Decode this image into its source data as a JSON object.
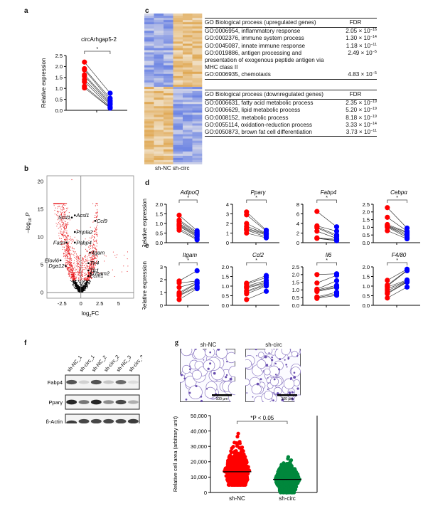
{
  "panels": {
    "a": {
      "letter": "a",
      "chart_data": {
        "type": "scatter",
        "subtype": "paired-dot",
        "title": "circArhgap5-2",
        "ylabel": "Relative expression",
        "ylim": [
          0,
          2.5
        ],
        "yticks": [
          "0.0",
          "0.5",
          "1.0",
          "1.5",
          "2.0",
          "2.5"
        ],
        "significance": "*",
        "series": [
          {
            "name": "sh-NC",
            "color": "#ff0000",
            "values": [
              2.2,
              1.9,
              1.85,
              1.62,
              1.55,
              1.4,
              1.3,
              1.1,
              1.02
            ]
          },
          {
            "name": "sh-circ",
            "color": "#0000ff",
            "values": [
              0.78,
              0.55,
              0.45,
              0.38,
              0.3,
              0.25,
              0.15,
              0.12,
              0.1
            ]
          }
        ]
      }
    },
    "b": {
      "letter": "b",
      "chart_data": {
        "type": "scatter",
        "subtype": "volcano",
        "xlabel": "log2FC",
        "ylabel": "-log10 P",
        "xlim": [
          -4.5,
          7
        ],
        "ylim": [
          -1,
          21
        ],
        "xticks": [
          "-2.5",
          "0",
          "2.5",
          "5"
        ],
        "yticks": [
          "0",
          "5",
          "10",
          "15",
          "20"
        ],
        "labeled_genes": [
          {
            "name": "Scd1",
            "x": -1.2,
            "y": 13.5
          },
          {
            "name": "Acsl1",
            "x": -0.8,
            "y": 13.9
          },
          {
            "name": "Ccl9",
            "x": 1.9,
            "y": 12.9
          },
          {
            "name": "Pnpla2",
            "x": -0.8,
            "y": 10.9
          },
          {
            "name": "Fasn",
            "x": -1.9,
            "y": 9.0
          },
          {
            "name": "Pabp4",
            "x": -0.8,
            "y": 9.0
          },
          {
            "name": "Itgam",
            "x": 1.2,
            "y": 7.2
          },
          {
            "name": "Elovl6",
            "x": -2.7,
            "y": 5.8
          },
          {
            "name": "Dga12",
            "x": -2.0,
            "y": 4.8
          },
          {
            "name": "Tlr4",
            "x": 1.0,
            "y": 5.3
          },
          {
            "name": "Tlr1",
            "x": 1.0,
            "y": 4.0
          },
          {
            "name": "Ticam2",
            "x": 1.3,
            "y": 3.5
          },
          {
            "name": "Ecm1",
            "x": 1.0,
            "y": 3.0
          }
        ],
        "colors": {
          "significant": "#e8181c",
          "nonsignificant": "#000000"
        }
      }
    },
    "c": {
      "letter": "c",
      "heatmap_labels": [
        "sh-NC",
        "sh-circ"
      ],
      "colors": {
        "high": "#e0a955",
        "low": "#6b83e3",
        "mid": "#f5f1ea"
      },
      "up_table": {
        "header_term": "GO Biological process (upregulated genes)",
        "header_fdr": "FDR",
        "rows": [
          {
            "term": "GO:0006954, inflammatory response",
            "mant": "2.05",
            "exp": "−16"
          },
          {
            "term": "GO:0002376, immune system process",
            "mant": "1.30",
            "exp": "−14"
          },
          {
            "term": "GO:0045087, innate immune response",
            "mant": "1.18",
            "exp": "−11"
          },
          {
            "term": "GO:0019886, antigen processing and presentation of exogenous peptide antigen via MHC class II",
            "mant": "2.49",
            "exp": "−5"
          },
          {
            "term": "GO:0006935, chemotaxis",
            "mant": "4.83",
            "exp": "−5"
          }
        ]
      },
      "down_table": {
        "header_term": "GO Biological process (downregulated genes)",
        "header_fdr": "FDR",
        "rows": [
          {
            "term": "GO:0006631, fatty acid metabolic process",
            "mant": "2.35",
            "exp": "−19"
          },
          {
            "term": "GO:0006629, lipid metabolic process",
            "mant": "5.20",
            "exp": "−19"
          },
          {
            "term": "GO:0008152, metabolic process",
            "mant": "8.18",
            "exp": "−19"
          },
          {
            "term": "GO:0055114, oxidation-reduction process",
            "mant": "3.33",
            "exp": "−14"
          },
          {
            "term": "GO:0050873, brown fat cell differentiation",
            "mant": "3.73",
            "exp": "−11"
          }
        ]
      },
      "times": "×",
      "ten": "10"
    },
    "d": {
      "letter": "d",
      "ylabel": "Relative expression",
      "chart_data": [
        {
          "type": "scatter",
          "title": "AdipoQ",
          "ylim": [
            0,
            2.0
          ],
          "yticks": [
            "0.0",
            "0.5",
            "1.0",
            "1.5",
            "2.0"
          ],
          "significance": "*",
          "series": [
            {
              "name": "sh-NC",
              "values": [
                1.43,
                1.18,
                1.1,
                1.0,
                0.95,
                0.9,
                0.85,
                0.75,
                0.65
              ]
            },
            {
              "name": "sh-circ",
              "values": [
                0.62,
                0.55,
                0.5,
                0.45,
                0.4,
                0.35,
                0.3,
                0.2,
                0.15
              ]
            }
          ]
        },
        {
          "type": "scatter",
          "title": "Pparγ",
          "ylim": [
            0,
            4
          ],
          "yticks": [
            "0",
            "1",
            "2",
            "3",
            "4"
          ],
          "significance": "*",
          "series": [
            {
              "name": "sh-NC",
              "values": [
                3.2,
                2.9,
                2.0,
                1.7,
                1.5,
                1.4,
                1.3,
                1.0
              ]
            },
            {
              "name": "sh-circ",
              "values": [
                1.3,
                1.2,
                1.0,
                0.95,
                0.9,
                0.8,
                0.6,
                0.5
              ]
            }
          ]
        },
        {
          "type": "scatter",
          "title": "Fabp4",
          "ylim": [
            0,
            8
          ],
          "yticks": [
            "0",
            "2",
            "4",
            "6",
            "8"
          ],
          "significance": "*",
          "series": [
            {
              "name": "sh-NC",
              "values": [
                6.5,
                3.5,
                3.3,
                3.1,
                2.4,
                1.0,
                0.95,
                0.9
              ]
            },
            {
              "name": "sh-circ",
              "values": [
                3.3,
                2.4,
                1.6,
                1.3,
                0.9,
                0.7,
                0.5,
                0.4
              ]
            }
          ]
        },
        {
          "type": "scatter",
          "title": "Cebpα",
          "ylim": [
            0,
            2.5
          ],
          "yticks": [
            "0.0",
            "0.5",
            "1.0",
            "1.5",
            "2.0",
            "2.5"
          ],
          "significance": "*",
          "series": [
            {
              "name": "sh-NC",
              "values": [
                2.28,
                1.65,
                1.18,
                1.12,
                1.08,
                1.05,
                1.0,
                0.78
              ]
            },
            {
              "name": "sh-circ",
              "values": [
                0.95,
                0.75,
                0.7,
                0.65,
                0.55,
                0.45,
                0.35,
                0.25
              ]
            }
          ]
        }
      ]
    },
    "e": {
      "letter": "e",
      "ylabel": "Relative expression",
      "chart_data": [
        {
          "type": "scatter",
          "title": "Itgam",
          "ylim": [
            0,
            3
          ],
          "yticks": [
            "0",
            "1",
            "2",
            "3"
          ],
          "significance": "*",
          "series": [
            {
              "name": "sh-NC",
              "values": [
                1.9,
                1.75,
                1.4,
                1.0,
                0.9,
                0.8,
                0.75,
                0.45
              ]
            },
            {
              "name": "sh-circ",
              "values": [
                2.7,
                1.9,
                1.8,
                1.75,
                1.7,
                1.5,
                1.4,
                1.3
              ]
            }
          ]
        },
        {
          "type": "scatter",
          "title": "Ccl2",
          "ylim": [
            0,
            2.0
          ],
          "yticks": [
            "0.0",
            "0.5",
            "1.0",
            "1.5",
            "2.0"
          ],
          "significance": "*",
          "series": [
            {
              "name": "sh-NC",
              "values": [
                1.15,
                1.1,
                1.0,
                0.95,
                0.9,
                0.75,
                0.7,
                0.6,
                0.3
              ]
            },
            {
              "name": "sh-circ",
              "values": [
                1.55,
                1.45,
                1.3,
                1.2,
                1.15,
                1.1,
                1.05,
                1.0,
                0.73
              ]
            }
          ]
        },
        {
          "type": "scatter",
          "title": "Il6",
          "ylim": [
            0,
            2.5
          ],
          "yticks": [
            "0.0",
            "0.5",
            "1.0",
            "1.5",
            "2.0",
            "2.5"
          ],
          "significance": "*",
          "series": [
            {
              "name": "sh-NC",
              "values": [
                2.0,
                1.45,
                1.05,
                1.0,
                0.95,
                0.9,
                0.55,
                0.5,
                0.45
              ]
            },
            {
              "name": "sh-circ",
              "values": [
                2.05,
                1.95,
                1.6,
                1.3,
                1.2,
                1.15,
                0.85,
                0.75,
                0.65
              ]
            }
          ]
        },
        {
          "type": "scatter",
          "title": "F4/80",
          "ylim": [
            0,
            2.0
          ],
          "yticks": [
            "0.0",
            "0.5",
            "1.0",
            "1.5",
            "2.0"
          ],
          "significance": "*",
          "series": [
            {
              "name": "sh-NC",
              "values": [
                1.3,
                1.05,
                1.0,
                0.95,
                0.85,
                0.75,
                0.65,
                0.6,
                0.38
              ]
            },
            {
              "name": "sh-circ",
              "values": [
                1.88,
                1.82,
                1.8,
                1.32,
                1.28,
                1.25,
                1.22,
                1.2,
                0.95
              ]
            }
          ]
        }
      ]
    },
    "f": {
      "letter": "f",
      "lanes": [
        "sh-NC_1",
        "sh-circ_1",
        "sh-NC_2",
        "sh-circ_2",
        "sh-NC_3",
        "sh-circ_3"
      ],
      "blots": [
        {
          "label": "Fabp4",
          "intensities": [
            0.75,
            0.2,
            0.75,
            0.25,
            0.65,
            0.15
          ]
        },
        {
          "label": "Pparγ",
          "intensities": [
            0.95,
            0.6,
            0.95,
            0.5,
            0.8,
            0.35
          ]
        },
        {
          "label": "β-Actin",
          "intensities": [
            0.85,
            0.8,
            0.8,
            0.8,
            0.8,
            0.85
          ]
        }
      ]
    },
    "g": {
      "letter": "g",
      "images": [
        {
          "label": "sh-NC",
          "scale_bar": "100 μm"
        },
        {
          "label": "sh-circ",
          "scale_bar": "100 μm"
        }
      ],
      "chart_data": {
        "type": "scatter",
        "subtype": "dot-plot",
        "ylabel": "Relative cell area (arbitrary unit)",
        "ylim": [
          0,
          50000
        ],
        "yticks": [
          "0",
          "10,000",
          "20,000",
          "30,000",
          "40,000",
          "50,000"
        ],
        "categories": [
          "sh-NC",
          "sh-circ"
        ],
        "annotation": "*P < 0.05",
        "series": [
          {
            "name": "sh-NC",
            "color": "#ff0000",
            "median": 13500,
            "min": 5000,
            "max": 39000
          },
          {
            "name": "sh-circ",
            "color": "#00873c",
            "median": 8500,
            "min": 0,
            "max": 24000
          }
        ]
      }
    }
  }
}
